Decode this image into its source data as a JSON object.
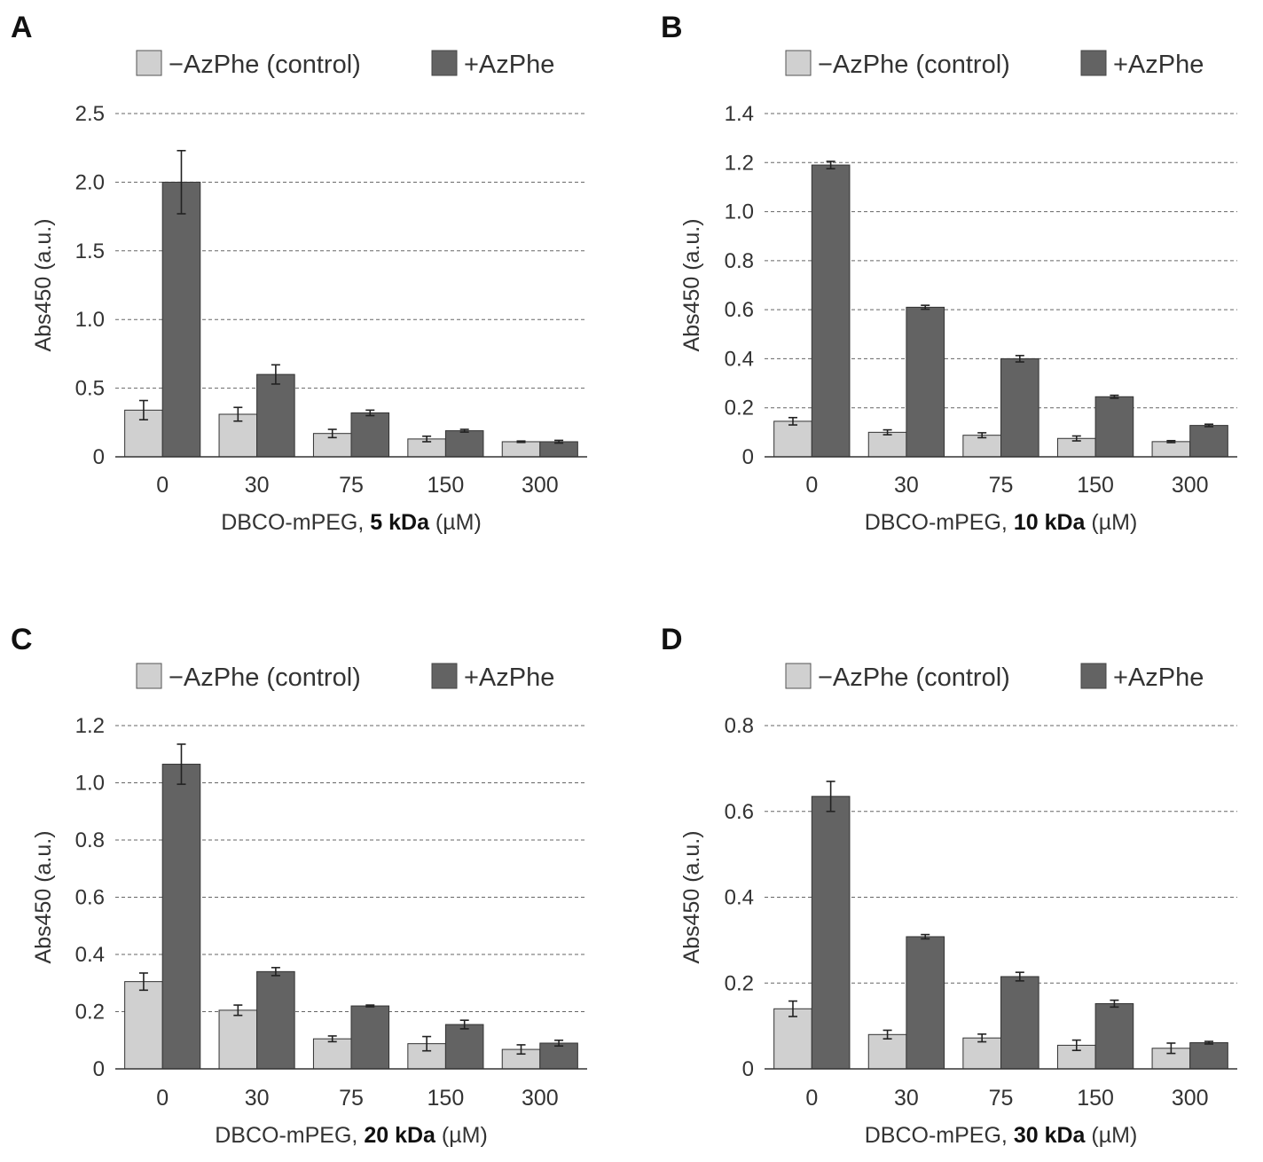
{
  "colors": {
    "control": "#d0d0d0",
    "azphe": "#636363",
    "grid": "#666666",
    "text": "#333333"
  },
  "legend": {
    "control_label": "−AzPhe (control)",
    "azphe_label": "+AzPhe"
  },
  "chart_data": [
    {
      "panel": "A",
      "type": "bar",
      "categories": [
        "0",
        "30",
        "75",
        "150",
        "300"
      ],
      "xlabel_prefix": "DBCO-mPEG, ",
      "xlabel_bold": "5 kDa",
      "xlabel_suffix": " (µM)",
      "ylabel": "Abs450 (a.u.)",
      "ylim": [
        0,
        2.5
      ],
      "yticks": [
        0,
        0.5,
        1.0,
        1.5,
        2.0,
        2.5
      ],
      "ytick_labels": [
        "0",
        "0.5",
        "1.0",
        "1.5",
        "2.0",
        "2.5"
      ],
      "grid": true,
      "series": [
        {
          "name": "−AzPhe (control)",
          "values": [
            0.34,
            0.31,
            0.17,
            0.13,
            0.11
          ],
          "errors": [
            0.07,
            0.05,
            0.03,
            0.02,
            0.005
          ]
        },
        {
          "name": "+AzPhe",
          "values": [
            2.0,
            0.6,
            0.32,
            0.19,
            0.11
          ],
          "errors": [
            0.23,
            0.07,
            0.02,
            0.01,
            0.01
          ]
        }
      ]
    },
    {
      "panel": "B",
      "type": "bar",
      "categories": [
        "0",
        "30",
        "75",
        "150",
        "300"
      ],
      "xlabel_prefix": "DBCO-mPEG, ",
      "xlabel_bold": "10 kDa",
      "xlabel_suffix": " (µM)",
      "ylabel": "Abs450 (a.u.)",
      "ylim": [
        0,
        1.4
      ],
      "yticks": [
        0,
        0.2,
        0.4,
        0.6,
        0.8,
        1.0,
        1.2,
        1.4
      ],
      "ytick_labels": [
        "0",
        "0.2",
        "0.4",
        "0.6",
        "0.8",
        "1.0",
        "1.2",
        "1.4"
      ],
      "grid": true,
      "series": [
        {
          "name": "−AzPhe (control)",
          "values": [
            0.145,
            0.1,
            0.088,
            0.075,
            0.062
          ],
          "errors": [
            0.015,
            0.01,
            0.01,
            0.01,
            0.004
          ]
        },
        {
          "name": "+AzPhe",
          "values": [
            1.19,
            0.61,
            0.4,
            0.245,
            0.128
          ],
          "errors": [
            0.015,
            0.008,
            0.013,
            0.006,
            0.005
          ]
        }
      ]
    },
    {
      "panel": "C",
      "type": "bar",
      "categories": [
        "0",
        "30",
        "75",
        "150",
        "300"
      ],
      "xlabel_prefix": "DBCO-mPEG, ",
      "xlabel_bold": "20 kDa",
      "xlabel_suffix": " (µM)",
      "ylabel": "Abs450 (a.u.)",
      "ylim": [
        0,
        1.2
      ],
      "yticks": [
        0,
        0.2,
        0.4,
        0.6,
        0.8,
        1.0,
        1.2
      ],
      "ytick_labels": [
        "0",
        "0.2",
        "0.4",
        "0.6",
        "0.8",
        "1.0",
        "1.2"
      ],
      "grid": true,
      "series": [
        {
          "name": "−AzPhe (control)",
          "values": [
            0.305,
            0.205,
            0.105,
            0.088,
            0.068
          ],
          "errors": [
            0.03,
            0.018,
            0.01,
            0.025,
            0.016
          ]
        },
        {
          "name": "+AzPhe",
          "values": [
            1.065,
            0.34,
            0.22,
            0.155,
            0.09
          ],
          "errors": [
            0.07,
            0.014,
            0.003,
            0.015,
            0.01
          ]
        }
      ]
    },
    {
      "panel": "D",
      "type": "bar",
      "categories": [
        "0",
        "30",
        "75",
        "150",
        "300"
      ],
      "xlabel_prefix": "DBCO-mPEG, ",
      "xlabel_bold": "30 kDa",
      "xlabel_suffix": " (µM)",
      "ylabel": "Abs450 (a.u.)",
      "ylim": [
        0,
        0.8
      ],
      "yticks": [
        0,
        0.2,
        0.4,
        0.6,
        0.8
      ],
      "ytick_labels": [
        "0",
        "0.2",
        "0.4",
        "0.6",
        "0.8"
      ],
      "grid": true,
      "series": [
        {
          "name": "−AzPhe (control)",
          "values": [
            0.14,
            0.08,
            0.072,
            0.055,
            0.048
          ],
          "errors": [
            0.018,
            0.01,
            0.009,
            0.012,
            0.012
          ]
        },
        {
          "name": "+AzPhe",
          "values": [
            0.635,
            0.308,
            0.215,
            0.152,
            0.061
          ],
          "errors": [
            0.035,
            0.005,
            0.01,
            0.008,
            0.003
          ]
        }
      ]
    }
  ]
}
